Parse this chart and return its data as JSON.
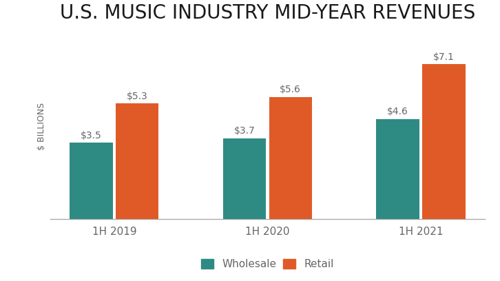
{
  "title": "U.S. MUSIC INDUSTRY MID-YEAR REVENUES",
  "categories": [
    "1H 2019",
    "1H 2020",
    "1H 2021"
  ],
  "wholesale": [
    3.5,
    3.7,
    4.6
  ],
  "retail": [
    5.3,
    5.6,
    7.1
  ],
  "wholesale_labels": [
    "$3.5",
    "$3.7",
    "$4.6"
  ],
  "retail_labels": [
    "$5.3",
    "$5.6",
    "$7.1"
  ],
  "wholesale_color": "#2e8b84",
  "retail_color": "#e05a28",
  "ylabel": "$ BILLIONS",
  "ylim": [
    0,
    8.5
  ],
  "bar_width": 0.28,
  "background_color": "#ffffff",
  "title_fontsize": 20,
  "label_fontsize": 10,
  "tick_fontsize": 11,
  "ylabel_fontsize": 9,
  "legend_labels": [
    "Wholesale",
    "Retail"
  ],
  "text_color": "#666666",
  "title_color": "#1a1a1a"
}
